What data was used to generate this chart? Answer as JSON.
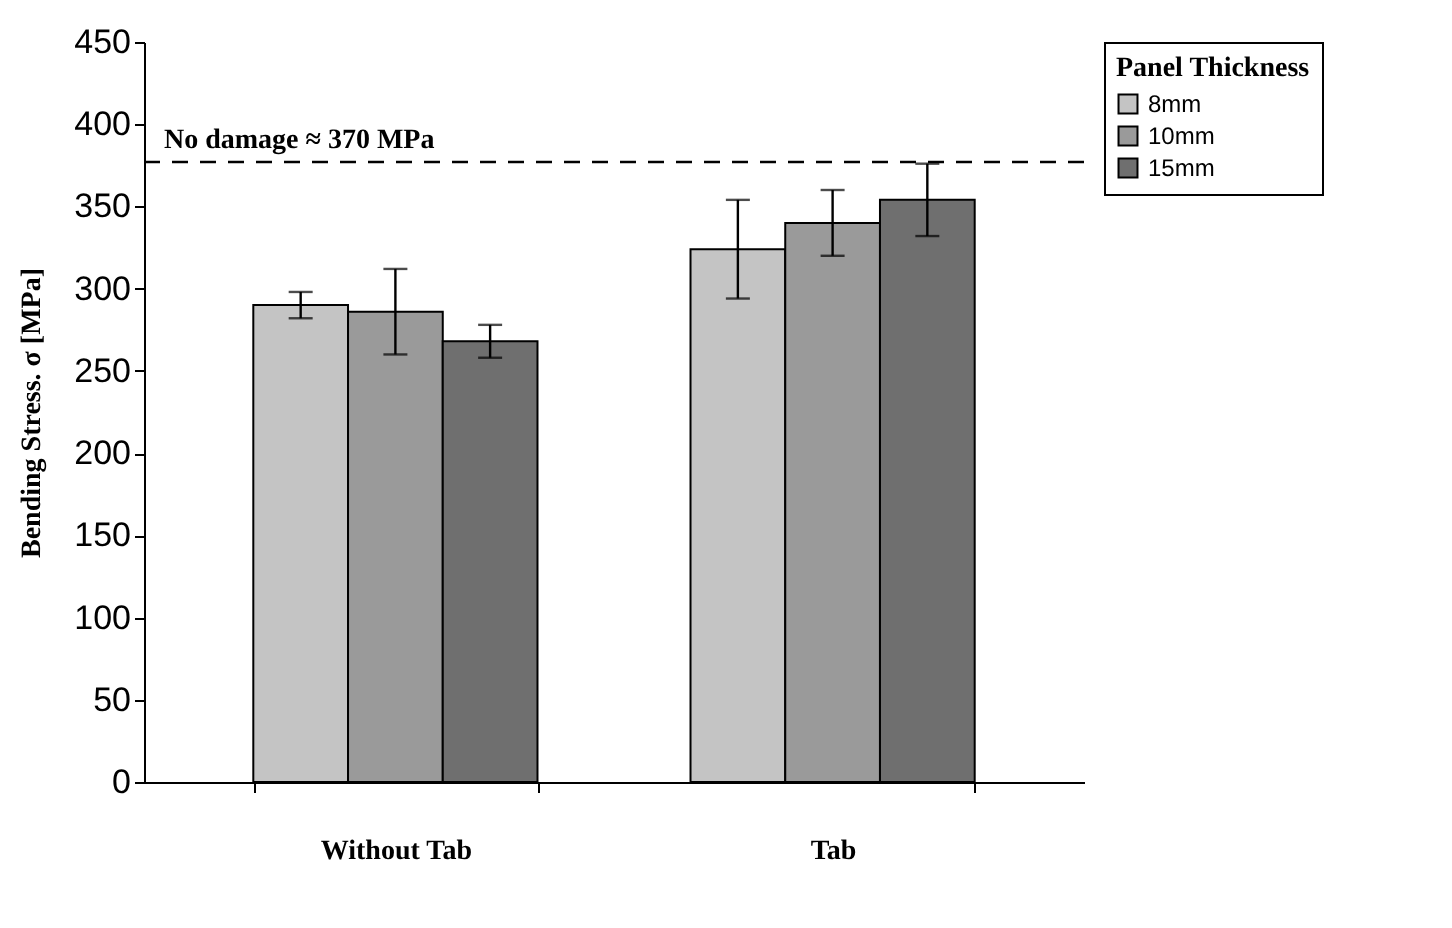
{
  "chart_data": {
    "type": "bar",
    "ylabel": "Bending Stress. σ [MPa]",
    "legend_title": "Panel Thickness",
    "categories": [
      "Without Tab",
      "Tab"
    ],
    "series": [
      {
        "name": "8mm",
        "color": "#c4c4c4",
        "values": [
          290,
          324
        ],
        "errors": [
          8,
          30
        ]
      },
      {
        "name": "10mm",
        "color": "#9a9a9a",
        "values": [
          286,
          340
        ],
        "errors": [
          26,
          20
        ]
      },
      {
        "name": "15mm",
        "color": "#6f6f6f",
        "values": [
          268,
          354
        ],
        "errors": [
          10,
          22
        ]
      }
    ],
    "ylim": [
      0,
      450
    ],
    "yticks": [
      0,
      50,
      100,
      150,
      200,
      250,
      300,
      350,
      400,
      450
    ],
    "ref_lines": [
      {
        "axis": "y",
        "value": 377,
        "label": "No damage ≈ 370 MPa",
        "line_style": "dashed",
        "color": "#000000"
      }
    ],
    "legend": "right",
    "grid": false
  }
}
